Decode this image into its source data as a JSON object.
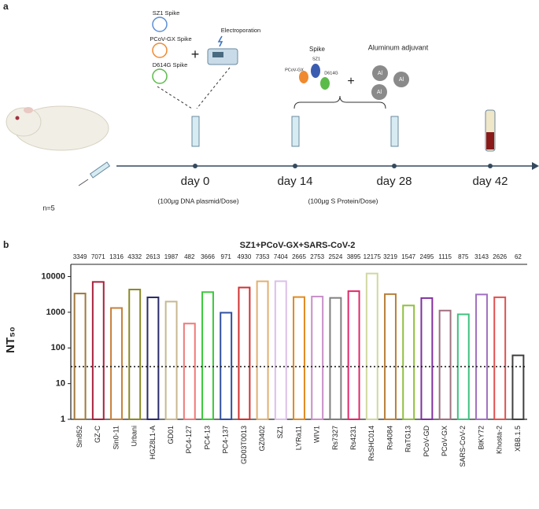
{
  "panel_a": {
    "label": "a",
    "plasmids": [
      "SZ1 Spike",
      "PCoV-GX Spike",
      "D614G Spike"
    ],
    "electroporation": "Electroporation",
    "plus": "+",
    "spike": "Spike",
    "spike_parts": [
      "PCoV-GX",
      "SZ1",
      "D614G"
    ],
    "adjuvant": "Aluminum adjuvant",
    "al": [
      "Al",
      "Al",
      "Al"
    ],
    "n": "n=5",
    "days": [
      "day 0",
      "day 14",
      "day 28",
      "day 42"
    ],
    "dna_dose": "(100μg DNA plasmid/Dose)",
    "protein_dose": "(100μg S Protein/Dose)"
  },
  "chart_data": {
    "type": "bar",
    "label": "b",
    "title": "SZ1+PCoV-GX+SARS-CoV-2",
    "ylabel": "NT₅₀",
    "categories": [
      "Sin852",
      "GZ-C",
      "Sin0-11",
      "Urbani",
      "HGZ8L1-A",
      "GD01",
      "PC4-127",
      "PC4-13",
      "PC4-137",
      "GD03T0013",
      "GZ0402",
      "SZ1",
      "LYRa11",
      "WIV1",
      "Rs7327",
      "Rs4231",
      "RsSHC014",
      "Rs4084",
      "RaTG13",
      "PCoV-GD",
      "PCoV-GX",
      "SARS-CoV-2",
      "BtKY72",
      "Khosta-2",
      "XBB.1.5"
    ],
    "values": [
      3349,
      7071,
      1316,
      4332,
      2613,
      1987,
      482,
      3666,
      971,
      4930,
      7353,
      7404,
      2665,
      2753,
      2524,
      3895,
      12175,
      3219,
      1547,
      2495,
      1115,
      875,
      3143,
      2626,
      62
    ],
    "colors": [
      "#a0783c",
      "#a8203c",
      "#c8803c",
      "#8a8a2a",
      "#2a2a6a",
      "#c8b890",
      "#f07878",
      "#3cc83c",
      "#3050a0",
      "#d03030",
      "#e0b070",
      "#dcc0e8",
      "#e08a20",
      "#c890c8",
      "#808080",
      "#e0286a",
      "#d0d8a0",
      "#b8803a",
      "#90c040",
      "#8030a0",
      "#a07080",
      "#40c080",
      "#a070c0",
      "#e05050",
      "#404040"
    ],
    "log_scale": true,
    "ylim": [
      1,
      22000
    ],
    "yticks": [
      1,
      10,
      100,
      1000,
      10000
    ],
    "threshold": 30
  }
}
